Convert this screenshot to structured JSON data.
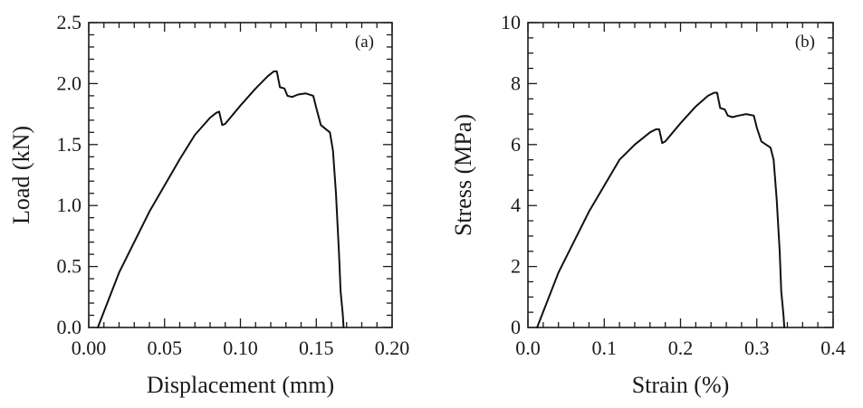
{
  "chart_data": [
    {
      "type": "line",
      "panel_label": "(a)",
      "xlabel": "Displacement (mm)",
      "ylabel": "Load (kN)",
      "xlim": [
        0,
        0.2
      ],
      "ylim": [
        0,
        2.5
      ],
      "x_ticks": [
        "0.00",
        "0.05",
        "0.10",
        "0.15",
        "0.20"
      ],
      "y_ticks": [
        "0.0",
        "0.5",
        "1.0",
        "1.5",
        "2.0",
        "2.5"
      ],
      "minor_x_per_major": 5,
      "minor_y_per_major": 5,
      "grid": false,
      "series": [
        {
          "x": [
            0.006,
            0.02,
            0.04,
            0.06,
            0.07,
            0.08,
            0.084,
            0.086,
            0.088,
            0.09,
            0.1,
            0.11,
            0.118,
            0.122,
            0.124,
            0.126,
            0.129,
            0.131,
            0.134,
            0.138,
            0.143,
            0.148,
            0.15,
            0.153,
            0.156,
            0.159,
            0.161,
            0.163,
            0.165,
            0.166,
            0.1675,
            0.168
          ],
          "y": [
            0,
            0.45,
            0.95,
            1.38,
            1.58,
            1.72,
            1.76,
            1.77,
            1.66,
            1.67,
            1.82,
            1.96,
            2.06,
            2.1,
            2.1,
            1.97,
            1.96,
            1.9,
            1.89,
            1.91,
            1.92,
            1.9,
            1.8,
            1.66,
            1.63,
            1.6,
            1.45,
            1.1,
            0.6,
            0.3,
            0.1,
            0
          ]
        }
      ]
    },
    {
      "type": "line",
      "panel_label": "(b)",
      "xlabel": "Strain (%)",
      "ylabel": "Stress (MPa)",
      "xlim": [
        0,
        0.4
      ],
      "ylim": [
        0,
        10
      ],
      "x_ticks": [
        "0.0",
        "0.1",
        "0.2",
        "0.3",
        "0.4"
      ],
      "y_ticks": [
        "0",
        "2",
        "4",
        "6",
        "8",
        "10"
      ],
      "minor_x_per_major": 5,
      "minor_y_per_major": 4,
      "grid": false,
      "series": [
        {
          "x": [
            0.012,
            0.04,
            0.08,
            0.12,
            0.14,
            0.16,
            0.168,
            0.172,
            0.176,
            0.18,
            0.2,
            0.22,
            0.236,
            0.244,
            0.248,
            0.252,
            0.258,
            0.262,
            0.268,
            0.276,
            0.286,
            0.296,
            0.3,
            0.306,
            0.312,
            0.318,
            0.322,
            0.326,
            0.33,
            0.332,
            0.335,
            0.336
          ],
          "y": [
            0,
            1.8,
            3.8,
            5.5,
            6.0,
            6.4,
            6.5,
            6.5,
            6.05,
            6.1,
            6.7,
            7.25,
            7.6,
            7.7,
            7.7,
            7.2,
            7.15,
            6.95,
            6.9,
            6.95,
            7.0,
            6.95,
            6.55,
            6.1,
            6.0,
            5.9,
            5.5,
            4.2,
            2.5,
            1.2,
            0.4,
            0
          ]
        }
      ]
    }
  ]
}
